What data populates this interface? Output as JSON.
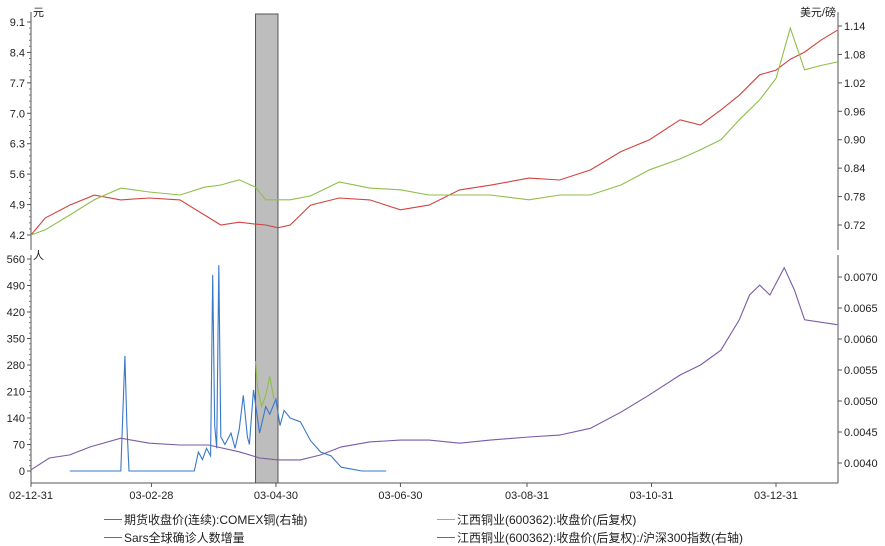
{
  "chart_data": {
    "type": "line",
    "x_ticks": [
      "02-12-31",
      "03-02-28",
      "03-04-30",
      "03-06-30",
      "03-08-31",
      "03-10-31",
      "03-12-31"
    ],
    "highlight_range": [
      "2003-04-20",
      "2003-05-01"
    ],
    "panels": [
      {
        "left_axis": {
          "unit": "元",
          "ylim": [
            4.2,
            9.1
          ],
          "ticks": [
            "4.2",
            "4.9",
            "5.6",
            "6.3",
            "7.0",
            "7.7",
            "8.4",
            "9.1"
          ]
        },
        "right_axis": {
          "unit": "美元/磅",
          "ylim": [
            0.72,
            1.14
          ],
          "ticks": [
            "0.72",
            "0.78",
            "0.84",
            "0.90",
            "0.96",
            "1.02",
            "1.08",
            "1.14"
          ]
        },
        "x": [
          "2002-12-31",
          "2003-01-07",
          "2003-01-19",
          "2003-01-31",
          "2003-02-13",
          "2003-02-27",
          "2003-03-14",
          "2003-03-26",
          "2003-04-03",
          "2003-04-12",
          "2003-04-20",
          "2003-04-25",
          "2003-05-01",
          "2003-05-07",
          "2003-05-17",
          "2003-05-31",
          "2003-06-15",
          "2003-06-30",
          "2003-07-14",
          "2003-07-29",
          "2003-08-13",
          "2003-09-01",
          "2003-09-16",
          "2003-10-01",
          "2003-10-16",
          "2003-10-30",
          "2003-11-14",
          "2003-11-24",
          "2003-12-04",
          "2003-12-13",
          "2003-12-23",
          "2003-12-31",
          "2004-01-07",
          "2004-01-14",
          "2004-01-22",
          "2004-01-30"
        ],
        "series": [
          {
            "name": "期货收盘价(连续):COMEX铜(右轴)",
            "axis": "right",
            "color": "#d0443e",
            "values": [
              0.699,
              0.735,
              0.762,
              0.783,
              0.773,
              0.777,
              0.773,
              0.741,
              0.72,
              0.726,
              0.722,
              0.72,
              0.714,
              0.72,
              0.762,
              0.777,
              0.773,
              0.752,
              0.762,
              0.794,
              0.804,
              0.819,
              0.815,
              0.836,
              0.875,
              0.9,
              0.942,
              0.931,
              0.963,
              0.994,
              1.037,
              1.047,
              1.07,
              1.085,
              1.11,
              1.131
            ]
          },
          {
            "name": "江西铜业(600362):收盘价(后复权)",
            "axis": "left",
            "color": "#8fbf4a",
            "values": [
              4.2,
              4.32,
              4.66,
              5.01,
              5.28,
              5.19,
              5.12,
              5.3,
              5.35,
              5.47,
              5.3,
              5.01,
              5.01,
              5.01,
              5.1,
              5.42,
              5.28,
              5.24,
              5.12,
              5.12,
              5.12,
              5.01,
              5.12,
              5.12,
              5.35,
              5.7,
              5.95,
              6.16,
              6.39,
              6.85,
              7.31,
              7.8,
              8.96,
              8.0,
              8.1,
              8.18
            ]
          }
        ]
      },
      {
        "left_axis": {
          "unit": "人",
          "ylim": [
            0,
            560
          ],
          "ticks": [
            "0",
            "70",
            "140",
            "210",
            "280",
            "350",
            "420",
            "490",
            "560"
          ]
        },
        "right_axis": {
          "unit": "",
          "ylim": [
            0.004,
            0.007
          ],
          "ticks": [
            "0.0040",
            "0.0045",
            "0.0050",
            "0.0055",
            "0.0060",
            "0.0065",
            "0.0070"
          ]
        },
        "series": [
          {
            "name": "Sars全球确诊人数增量",
            "axis": "left",
            "color": "#3a78c9",
            "x": [
              "2003-01-19",
              "2003-02-13",
              "2003-02-14",
              "2003-02-15",
              "2003-02-16",
              "2003-02-17",
              "2003-03-21",
              "2003-03-23",
              "2003-03-25",
              "2003-03-27",
              "2003-03-29",
              "2003-03-30",
              "2003-03-31",
              "2003-04-01",
              "2003-04-02",
              "2003-04-03",
              "2003-04-04",
              "2003-04-05",
              "2003-04-08",
              "2003-04-10",
              "2003-04-12",
              "2003-04-14",
              "2003-04-16",
              "2003-04-17",
              "2003-04-19",
              "2003-04-22",
              "2003-04-25",
              "2003-04-27",
              "2003-04-30",
              "2003-05-02",
              "2003-05-04",
              "2003-05-07",
              "2003-05-12",
              "2003-05-17",
              "2003-05-22",
              "2003-05-27",
              "2003-06-01",
              "2003-06-06",
              "2003-06-11",
              "2003-06-23"
            ],
            "values": [
              0,
              0,
              150,
              304,
              120,
              0,
              0,
              50,
              30,
              60,
              40,
              518,
              120,
              60,
              544,
              90,
              80,
              70,
              100,
              60,
              110,
              200,
              90,
              70,
              214,
              100,
              170,
              150,
              190,
              120,
              160,
              140,
              130,
              80,
              50,
              40,
              10,
              5,
              0,
              0
            ]
          },
          {
            "name": "江西铜业(600362):收盘价(后复权):/沪深300指数(右轴)",
            "axis": "right",
            "color": "#7a5aa6",
            "x": [
              "2002-12-31",
              "2003-01-09",
              "2003-01-19",
              "2003-01-29",
              "2003-02-13",
              "2003-02-27",
              "2003-03-14",
              "2003-03-28",
              "2003-04-12",
              "2003-04-22",
              "2003-05-01",
              "2003-05-12",
              "2003-05-22",
              "2003-06-01",
              "2003-06-15",
              "2003-06-30",
              "2003-07-14",
              "2003-07-29",
              "2003-08-13",
              "2003-09-01",
              "2003-09-16",
              "2003-10-01",
              "2003-10-16",
              "2003-10-30",
              "2003-11-14",
              "2003-11-24",
              "2003-12-04",
              "2003-12-13",
              "2003-12-18",
              "2003-12-23",
              "2003-12-28",
              "2004-01-04",
              "2004-01-09",
              "2004-01-14",
              "2004-01-30"
            ],
            "values": [
              0.00389,
              0.00408,
              0.00413,
              0.00426,
              0.0044,
              0.00432,
              0.00429,
              0.00429,
              0.00418,
              0.00408,
              0.00405,
              0.00405,
              0.00413,
              0.00426,
              0.00434,
              0.00437,
              0.00437,
              0.00432,
              0.00437,
              0.00442,
              0.00445,
              0.00456,
              0.00482,
              0.0051,
              0.00542,
              0.00558,
              0.00582,
              0.00631,
              0.00671,
              0.00687,
              0.00671,
              0.00715,
              0.00679,
              0.00631,
              0.00623
            ]
          },
          {
            "name": "",
            "axis": "left",
            "color": "#8fbf4a",
            "x": [
              "2003-04-20",
              "2003-04-21",
              "2003-04-23",
              "2003-04-25",
              "2003-04-27",
              "2003-04-29"
            ],
            "values": [
              290,
              220,
              170,
              200,
              250,
              190
            ]
          }
        ]
      }
    ]
  },
  "legend": [
    {
      "label": "期货收盘价(连续):COMEX铜(右轴)",
      "color": "#d0443e"
    },
    {
      "label": "江西铜业(600362):收盘价(后复权)",
      "color": "#8fbf4a"
    },
    {
      "label": "Sars全球确诊人数增量",
      "color": "#3a78c9"
    },
    {
      "label": "江西铜业(600362):收盘价(后复权):/沪深300指数(右轴)",
      "color": "#7a5aa6"
    }
  ]
}
